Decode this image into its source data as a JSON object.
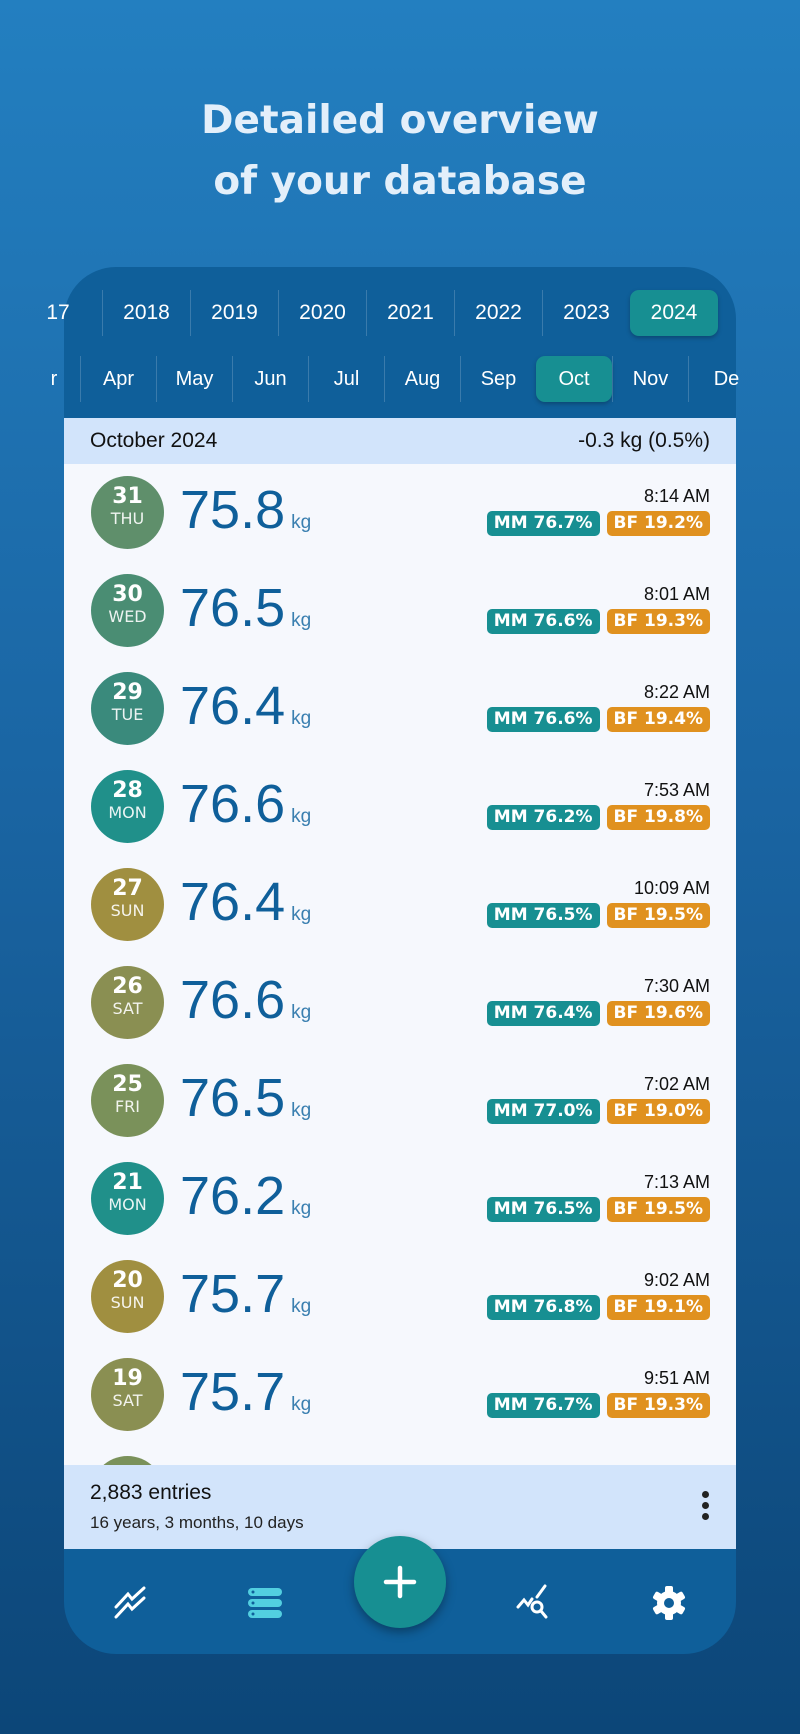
{
  "headline": [
    "Detailed overview",
    "of your database"
  ],
  "years": [
    "17",
    "2018",
    "2019",
    "2020",
    "2021",
    "2022",
    "2023",
    "2024"
  ],
  "selected_year": "2024",
  "months": [
    "r",
    "Apr",
    "May",
    "Jun",
    "Jul",
    "Aug",
    "Sep",
    "Oct",
    "Nov",
    "De"
  ],
  "selected_month": "Oct",
  "month_header": {
    "title": "October 2024",
    "change": "-0.3 kg (0.5%)"
  },
  "unit": "kg",
  "entries": [
    {
      "day": "31",
      "weekday": "THU",
      "weight": "75.8",
      "time": "8:14 AM",
      "mm": "MM 76.7%",
      "bf": "BF 19.2%",
      "color": "#5f8f6b"
    },
    {
      "day": "30",
      "weekday": "WED",
      "weight": "76.5",
      "time": "8:01 AM",
      "mm": "MM 76.6%",
      "bf": "BF 19.3%",
      "color": "#4a8d73"
    },
    {
      "day": "29",
      "weekday": "TUE",
      "weight": "76.4",
      "time": "8:22 AM",
      "mm": "MM 76.6%",
      "bf": "BF 19.4%",
      "color": "#3a8a7c"
    },
    {
      "day": "28",
      "weekday": "MON",
      "weight": "76.6",
      "time": "7:53 AM",
      "mm": "MM 76.2%",
      "bf": "BF 19.8%",
      "color": "#20908a"
    },
    {
      "day": "27",
      "weekday": "SUN",
      "weight": "76.4",
      "time": "10:09 AM",
      "mm": "MM 76.5%",
      "bf": "BF 19.5%",
      "color": "#a08f40"
    },
    {
      "day": "26",
      "weekday": "SAT",
      "weight": "76.6",
      "time": "7:30 AM",
      "mm": "MM 76.4%",
      "bf": "BF 19.6%",
      "color": "#8a8f52"
    },
    {
      "day": "25",
      "weekday": "FRI",
      "weight": "76.5",
      "time": "7:02 AM",
      "mm": "MM 77.0%",
      "bf": "BF 19.0%",
      "color": "#7a915a"
    },
    {
      "day": "21",
      "weekday": "MON",
      "weight": "76.2",
      "time": "7:13 AM",
      "mm": "MM 76.5%",
      "bf": "BF 19.5%",
      "color": "#20908a"
    },
    {
      "day": "20",
      "weekday": "SUN",
      "weight": "75.7",
      "time": "9:02 AM",
      "mm": "MM 76.8%",
      "bf": "BF 19.1%",
      "color": "#a08f40"
    },
    {
      "day": "19",
      "weekday": "SAT",
      "weight": "75.7",
      "time": "9:51 AM",
      "mm": "MM 76.7%",
      "bf": "BF 19.3%",
      "color": "#8a8f52"
    }
  ],
  "footer": {
    "entries": "2,883 entries",
    "span": "16 years, 3 months, 10 days"
  },
  "nav": [
    "chart-icon",
    "list-icon",
    "add-icon",
    "analysis-icon",
    "settings-icon"
  ],
  "colors": {
    "accent": "#178f92",
    "primary": "#0f5f9a",
    "bf": "#e0911f",
    "band": "#d2e4fb"
  }
}
